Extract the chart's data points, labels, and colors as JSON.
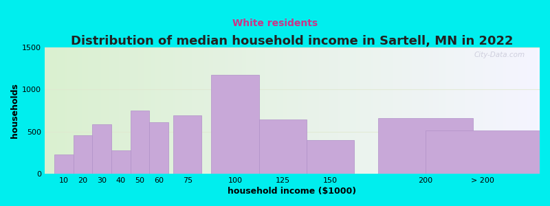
{
  "title": "Distribution of median household income in Sartell, MN in 2022",
  "subtitle": "White residents",
  "xlabel": "household income ($1000)",
  "ylabel": "households",
  "background_color": "#00EEEE",
  "plot_bg_left": "#daf0d0",
  "plot_bg_right": "#f5f5ff",
  "bar_color": "#c8a8d8",
  "bar_edge_color": "#b090c8",
  "bar_linewidth": 0.5,
  "bar_centers": [
    10,
    20,
    30,
    40,
    50,
    60,
    75,
    100,
    125,
    150,
    200,
    230
  ],
  "bar_widths": [
    10,
    10,
    10,
    10,
    10,
    10,
    15,
    25,
    25,
    25,
    50,
    60
  ],
  "values": [
    230,
    460,
    590,
    280,
    750,
    610,
    695,
    1175,
    640,
    400,
    660,
    510
  ],
  "xtick_positions": [
    10,
    20,
    30,
    40,
    50,
    60,
    75,
    100,
    125,
    150,
    200,
    230
  ],
  "xtick_labels": [
    "10",
    "20",
    "30",
    "40",
    "50",
    "60",
    "75",
    "100",
    "125",
    "150",
    "200",
    "> 200"
  ],
  "ylim": [
    0,
    1500
  ],
  "xlim": [
    0,
    260
  ],
  "yticks": [
    0,
    500,
    1000,
    1500
  ],
  "title_fontsize": 13,
  "subtitle_fontsize": 10,
  "subtitle_color": "#cc3388",
  "axis_label_fontsize": 9,
  "tick_fontsize": 8,
  "watermark_text": "City-Data.com",
  "watermark_color": "#c8c8d8",
  "grid_color": "#e0e8d0",
  "grid_alpha": 0.8
}
